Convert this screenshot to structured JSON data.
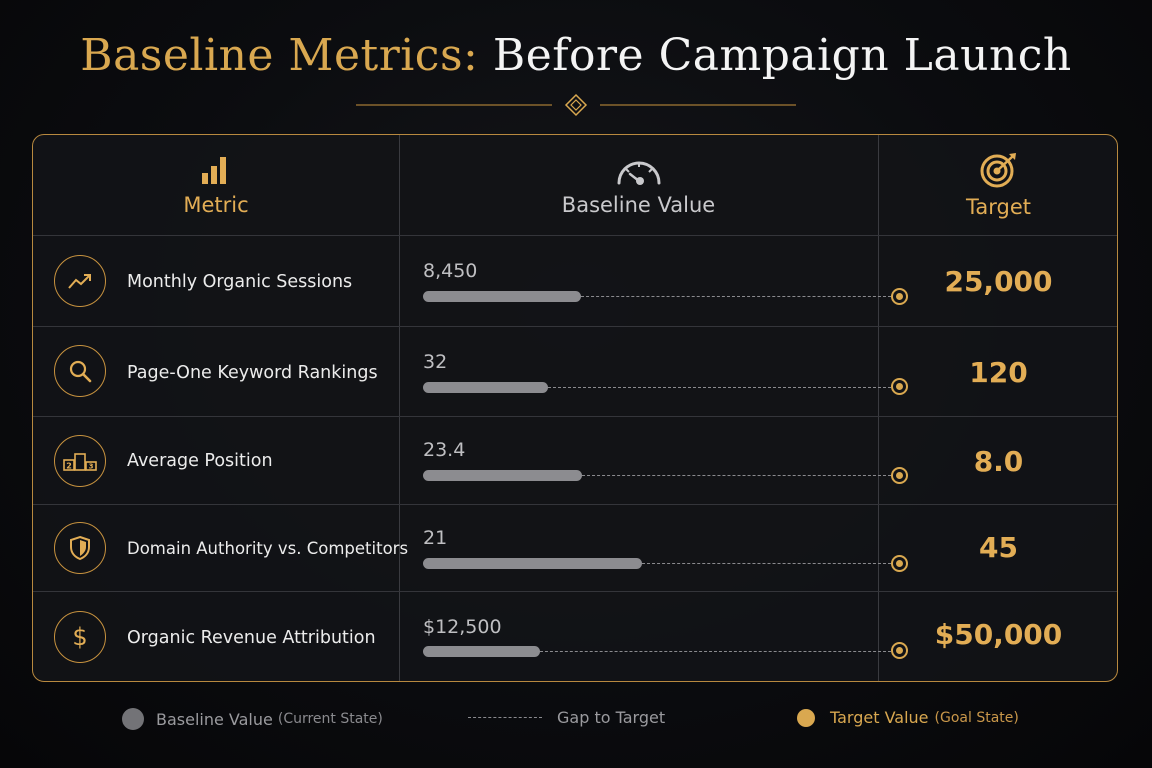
{
  "title": {
    "part1": "Baseline Metrics:",
    "part2": "Before Campaign Launch"
  },
  "columns": {
    "metric": "Metric",
    "baseline": "Baseline Value",
    "target": "Target"
  },
  "rows": [
    {
      "name": "Monthly Organic Sessions",
      "baseline": "8,450",
      "target": "25,000",
      "icon": "trending-up-icon"
    },
    {
      "name": "Page-One Keyword Rankings",
      "baseline": "32",
      "target": "120",
      "icon": "magnifier-icon"
    },
    {
      "name": "Average Position",
      "baseline": "23.4",
      "target": "8.0",
      "icon": "podium-icon"
    },
    {
      "name": "Domain Authority vs. Competitors",
      "baseline": "21",
      "target": "45",
      "icon": "shield-icon"
    },
    {
      "name": "Organic Revenue Attribution",
      "baseline": "$12,500",
      "target": "$50,000",
      "icon": "dollar-icon"
    }
  ],
  "legend": {
    "baseline": "Baseline Value",
    "baseline_sub": "(Current State)",
    "gap": "Gap to Target",
    "target": "Target Value",
    "target_sub": "(Goal State)"
  },
  "colors": {
    "gold": "#d9a850",
    "grey_bar": "#8c8c90",
    "background": "#0b0c0f",
    "border": "#b8893f"
  },
  "chart_data": {
    "type": "table",
    "categories": [
      "Monthly Organic Sessions",
      "Page-One Keyword Rankings",
      "Average Position",
      "Domain Authority vs. Competitors",
      "Organic Revenue Attribution"
    ],
    "series": [
      {
        "name": "Baseline Value",
        "values": [
          8450,
          32,
          23.4,
          21,
          12500
        ]
      },
      {
        "name": "Target",
        "values": [
          25000,
          120,
          8.0,
          45,
          50000
        ]
      }
    ],
    "progress_fraction": [
      0.338,
      0.267,
      0.34,
      0.467,
      0.25
    ]
  }
}
